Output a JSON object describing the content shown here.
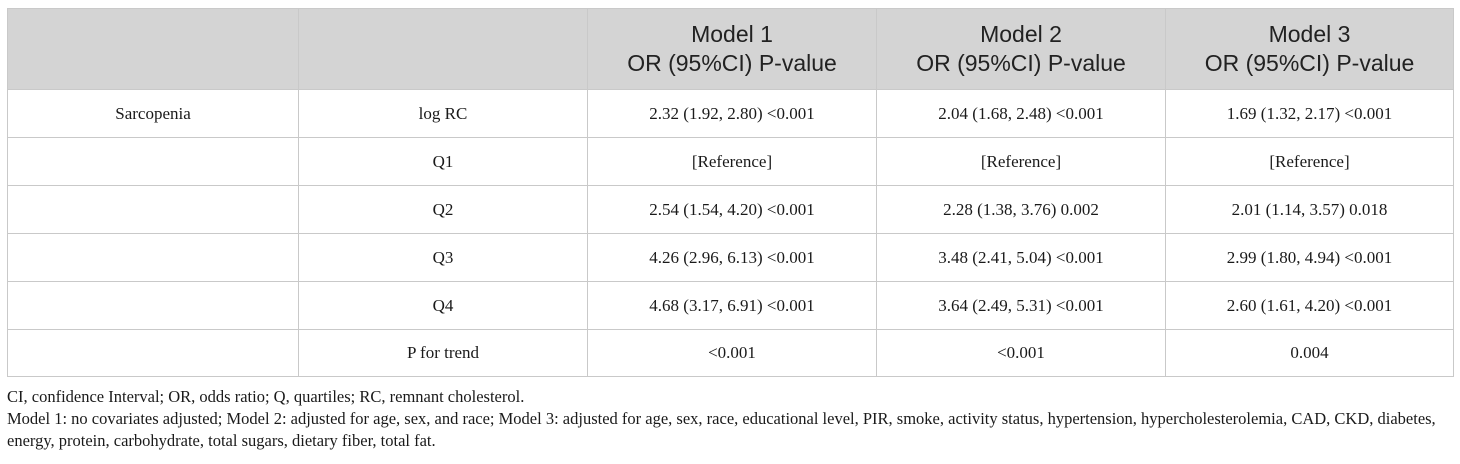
{
  "table": {
    "headers": [
      {
        "line1": "",
        "line2": ""
      },
      {
        "line1": "",
        "line2": ""
      },
      {
        "line1": "Model 1",
        "line2": "OR (95%CI) P-value"
      },
      {
        "line1": "Model 2",
        "line2": "OR (95%CI) P-value"
      },
      {
        "line1": "Model 3",
        "line2": "OR (95%CI) P-value"
      }
    ],
    "rows": [
      [
        "Sarcopenia",
        "log RC",
        "2.32 (1.92, 2.80) <0.001",
        "2.04 (1.68, 2.48) <0.001",
        "1.69 (1.32, 2.17) <0.001"
      ],
      [
        "",
        "Q1",
        "[Reference]",
        "[Reference]",
        "[Reference]"
      ],
      [
        "",
        "Q2",
        "2.54 (1.54, 4.20) <0.001",
        "2.28 (1.38, 3.76) 0.002",
        "2.01 (1.14, 3.57) 0.018"
      ],
      [
        "",
        "Q3",
        "4.26 (2.96, 6.13) <0.001",
        "3.48 (2.41, 5.04) <0.001",
        "2.99 (1.80, 4.94) <0.001"
      ],
      [
        "",
        "Q4",
        "4.68 (3.17, 6.91) <0.001",
        "3.64 (2.49, 5.31) <0.001",
        "2.60 (1.61, 4.20) <0.001"
      ],
      [
        "",
        "P for trend",
        "<0.001",
        "<0.001",
        "0.004"
      ]
    ]
  },
  "footnotes": [
    "CI, confidence Interval; OR, odds ratio; Q, quartiles; RC, remnant cholesterol.",
    "Model 1: no covariates adjusted; Model 2: adjusted for age, sex, and race; Model 3: adjusted for age, sex, race, educational level, PIR, smoke, activity status, hypertension, hypercholesterolemia, CAD, CKD, diabetes, energy, protein, carbohydrate, total sugars, dietary fiber, total fat."
  ]
}
